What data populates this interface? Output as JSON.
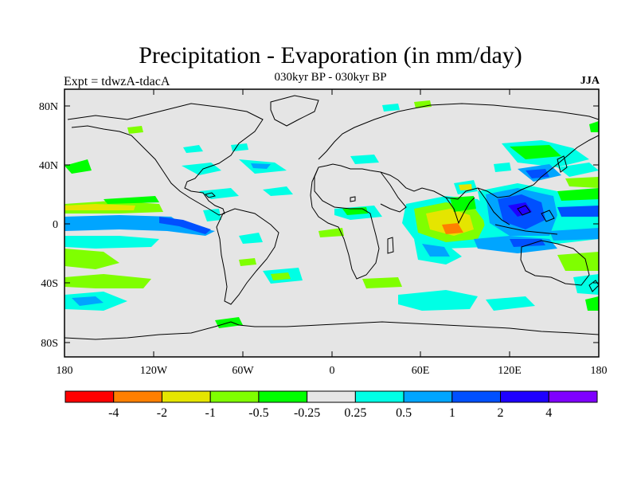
{
  "title": "Precipitation - Evaporation (in mm/day)",
  "subtitle": "030kyr BP - 030kyr BP",
  "left_label": "Expt = tdwzA-tdacA",
  "right_label": "JJA",
  "lat_ticks": [
    "80N",
    "40N",
    "0",
    "40S",
    "80S"
  ],
  "lon_ticks": [
    "180",
    "120W",
    "60W",
    "0",
    "60E",
    "120E",
    "180"
  ],
  "colorbar": {
    "colors": [
      "#ff0000",
      "#ff7f00",
      "#e5e500",
      "#7fff00",
      "#00ff00",
      "#e5e5e5",
      "#00ffe5",
      "#00a5ff",
      "#0050ff",
      "#1e00ff",
      "#7f00ff"
    ],
    "labels": [
      "-4",
      "-2",
      "-1",
      "-0.5",
      "-0.25",
      "0.25",
      "0.5",
      "1",
      "2",
      "4"
    ]
  },
  "map_background": "#e5e5e5"
}
